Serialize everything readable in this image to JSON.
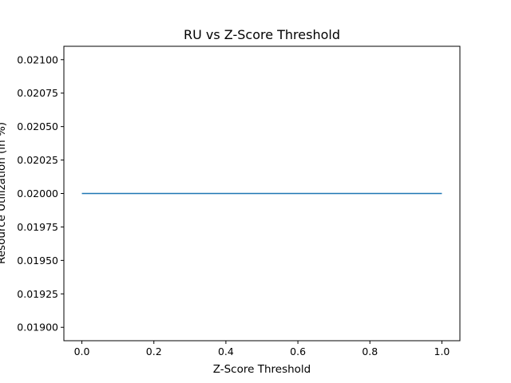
{
  "chart_data": {
    "type": "line",
    "title": "RU vs Z-Score Threshold",
    "xlabel": "Z-Score Threshold",
    "ylabel": "Resource Utilization (in %)",
    "xlim": [
      -0.05,
      1.05
    ],
    "ylim": [
      0.0189,
      0.0211
    ],
    "x_ticks": [
      0.0,
      0.2,
      0.4,
      0.6,
      0.8,
      1.0
    ],
    "x_tick_labels": [
      "0.0",
      "0.2",
      "0.4",
      "0.6",
      "0.8",
      "1.0"
    ],
    "y_ticks": [
      0.019,
      0.01925,
      0.0195,
      0.01975,
      0.02,
      0.02025,
      0.0205,
      0.02075,
      0.021
    ],
    "y_tick_labels": [
      "0.01900",
      "0.01925",
      "0.01950",
      "0.01975",
      "0.02000",
      "0.02025",
      "0.02050",
      "0.02075",
      "0.02100"
    ],
    "grid": false,
    "series": [
      {
        "color": "#1f77b4",
        "x": [
          0.0,
          1.0
        ],
        "y": [
          0.02,
          0.02
        ]
      }
    ]
  }
}
